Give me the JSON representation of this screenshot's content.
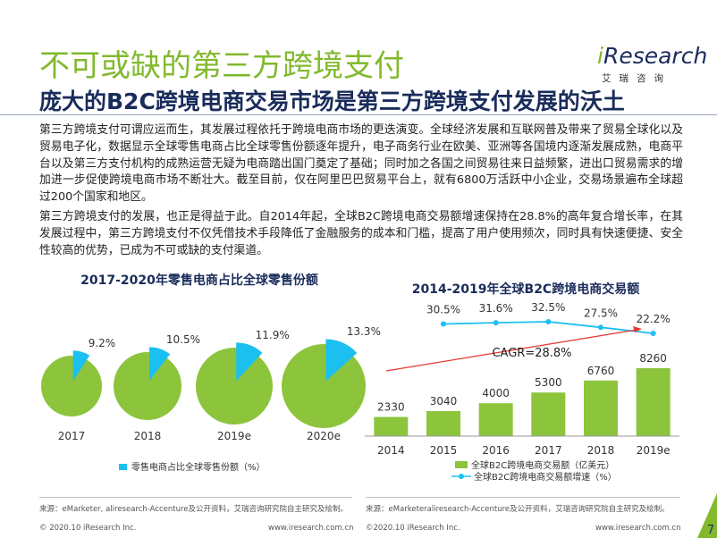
{
  "header": {
    "title": "不可或缺的第三方跨境支付",
    "subtitle": "庞大的B2C跨境电商交易市场是第三方跨境支付发展的沃土",
    "logo_i": "i",
    "logo_rest": "Research",
    "logo_sub": "艾瑞咨询"
  },
  "body": {
    "p1": "第三方跨境支付可谓应运而生，其发展过程依托于跨境电商市场的更迭演变。全球经济发展和互联网普及带来了贸易全球化以及贸易电子化，数据显示全球零售电商占比全球零售份额逐年提升，电子商务行业在欧美、亚洲等各国境内逐渐发展成熟，电商平台以及第三方支付机构的成熟运营无疑为电商踏出国门奠定了基础；同时加之各国之间贸易往来日益频繁，进出口贸易需求的增加进一步促使跨境电商市场不断壮大。截至目前，仅在阿里巴巴贸易平台上，就有6800万活跃中小企业，交易场景遍布全球超过200个国家和地区。",
    "p2": "第三方跨境支付的发展，也正是得益于此。自2014年起，全球B2C跨境电商交易额增速保持在28.8%的高年复合增长率，在其发展过程中，第三方跨境支付不仅凭借技术手段降低了金融服务的成本和门槛，提高了用户使用频次，同时具有快速便捷、安全性较高的优势，已成为不可或缺的支付渠道。"
  },
  "chart_data": [
    {
      "type": "pie",
      "title": "2017-2020年零售电商占比全球零售份额",
      "categories": [
        "2017",
        "2018",
        "2019e",
        "2020e"
      ],
      "values": [
        9.2,
        10.5,
        11.9,
        13.3
      ],
      "value_labels": [
        "9.2%",
        "10.5%",
        "11.9%",
        "13.3%"
      ],
      "legend": "零售电商占比全球零售份额（%）",
      "colors": {
        "slice": "#1cc0f0",
        "rest": "#8cc43c"
      }
    },
    {
      "type": "bar",
      "title": "2014-2019年全球B2C跨境电商交易额",
      "categories": [
        "2014",
        "2015",
        "2016",
        "2017",
        "2018",
        "2019e"
      ],
      "series": [
        {
          "name": "全球B2C跨境电商交易额（亿美元）",
          "values": [
            2330,
            3040,
            4000,
            5300,
            6760,
            8260
          ],
          "color": "#8cc43c"
        },
        {
          "name": "全球B2C跨境电商交易额增速（%）",
          "type": "line",
          "values": [
            null,
            30.5,
            31.6,
            32.5,
            27.5,
            22.2
          ],
          "labels": [
            "",
            "30.5%",
            "31.6%",
            "32.5%",
            "27.5%",
            "22.2%"
          ],
          "color": "#1cc0f0"
        }
      ],
      "annotation": "CAGR=28.8%"
    }
  ],
  "footer": {
    "source_left": "来源：eMarketer, aliresearch-Accenture及公开资料，艾瑞咨询研究院自主研究及绘制。",
    "source_right": "来源：eMarketeraliresearch-Accenture及公开资料，艾瑞咨询研究院自主研究及绘制。",
    "copy_left": "© 2020.10 iResearch Inc.",
    "url_left": "www.iresearch.com.cn",
    "copy_right": "©2020.10 iResearch Inc.",
    "url_right": "www.iresearch.com.cn",
    "page": "7",
    "colors": {
      "page_badge": "#82b92d"
    }
  }
}
